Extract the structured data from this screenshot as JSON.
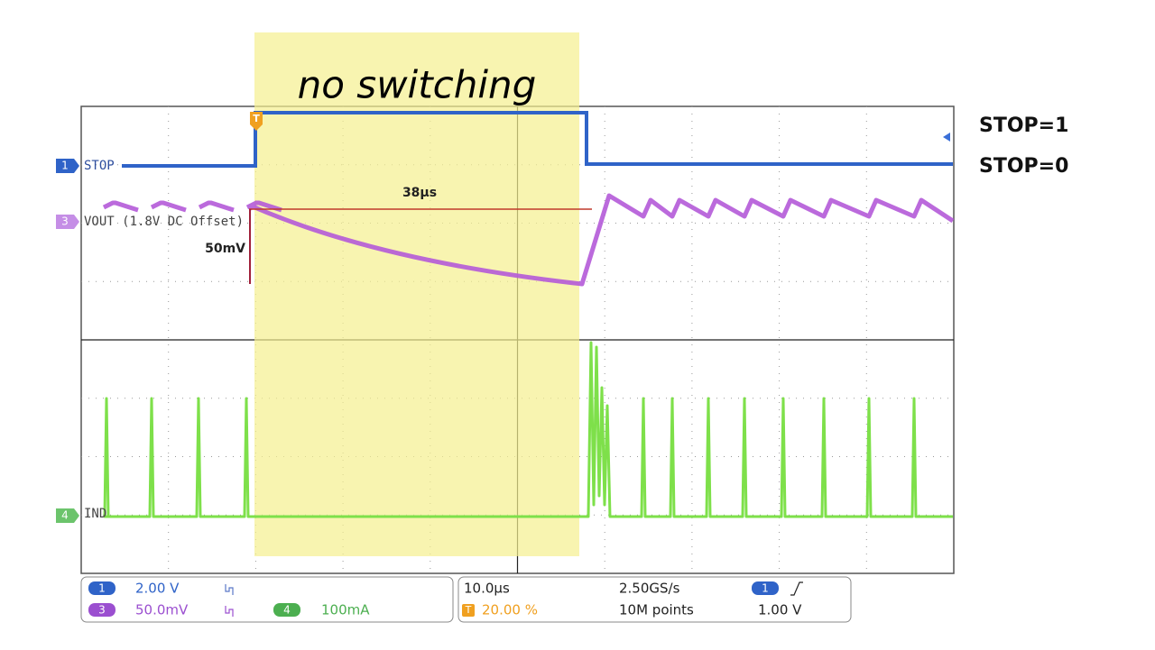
{
  "annotation": {
    "title": "no switching",
    "stop_high": "STOP=1",
    "stop_low": "STOP=0",
    "interval": "38µs",
    "amplitude": "50mV"
  },
  "trigger_marker": "T",
  "channels": [
    {
      "number": "1",
      "label": "STOP"
    },
    {
      "number": "3",
      "label": "VOUT (1.8V DC Offset)"
    },
    {
      "number": "4",
      "label": "IND"
    }
  ],
  "status": {
    "ch1": {
      "number": "1",
      "scale": "2.00 V"
    },
    "ch3": {
      "number": "3",
      "scale": "50.0mV"
    },
    "ch4": {
      "number": "4",
      "scale": "100mA"
    },
    "timebase": "10.0µs",
    "sample_rate": "2.50GS/s",
    "trigger_position": {
      "marker": "T",
      "value": "20.00 %"
    },
    "record_length": "10M points",
    "trigger": {
      "number": "1",
      "level": "1.00 V"
    }
  }
}
